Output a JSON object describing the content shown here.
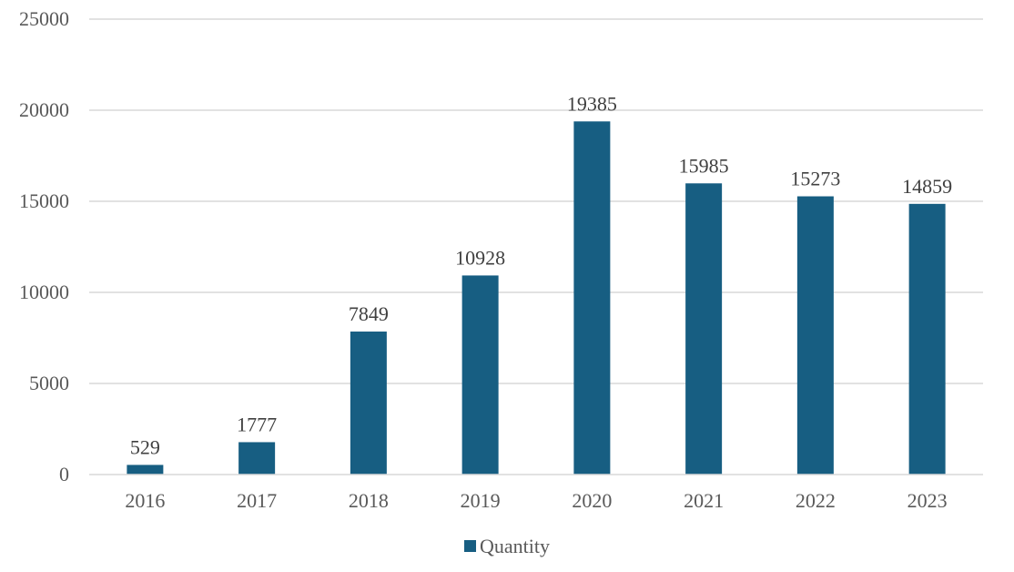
{
  "chart_data": {
    "type": "bar",
    "categories": [
      "2016",
      "2017",
      "2018",
      "2019",
      "2020",
      "2021",
      "2022",
      "2023"
    ],
    "series": [
      {
        "name": "Quantity",
        "values": [
          529,
          1777,
          7849,
          10928,
          19385,
          15985,
          15273,
          14859
        ],
        "color": "#175e82"
      }
    ],
    "title": "",
    "xlabel": "",
    "ylabel": "",
    "ylim": [
      0,
      25000
    ],
    "yticks": [
      0,
      5000,
      10000,
      15000,
      20000,
      25000
    ],
    "grid": true,
    "legend": "bottom-center",
    "data_labels": true
  },
  "colors": {
    "bar": "#175e82",
    "grid": "#d9d9d9",
    "axis": "#d9d9d9",
    "text": "#595959"
  }
}
